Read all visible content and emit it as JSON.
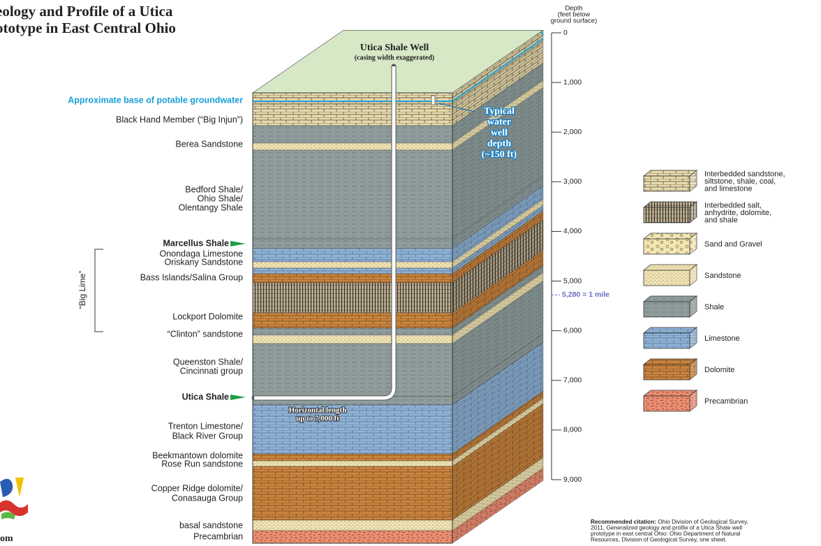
{
  "title": [
    "eology and Profile of a Utica",
    "ototype in East Central Ohio"
  ],
  "well": {
    "title": "Utica Shale Well",
    "note": "(casing width exaggerated)"
  },
  "groundwater_label": "Approximate base of potable groundwater",
  "layer_labels": [
    [
      "Black Hand Member (“Big Injun”)"
    ],
    [
      "Berea Sandstone"
    ],
    [
      "Bedford Shale/",
      "Ohio Shale/",
      "Olentangy Shale"
    ],
    [
      "Marcellus Shale"
    ],
    [
      "Onondaga Limestone",
      "Oriskany Sandstone"
    ],
    [
      "Bass Islands/Salina Group"
    ],
    [
      "Lockport Dolomite"
    ],
    [
      "“Clinton” sandstone"
    ],
    [
      "Queenston Shale/",
      "Cincinnati group"
    ],
    [
      "Utica Shale"
    ],
    [
      "Trenton Limestone/",
      "Black River Group"
    ],
    [
      "Beekmantown dolomite",
      "Rose Run sandstone"
    ],
    [
      "Copper Ridge dolomite/",
      "Conasauga Group"
    ],
    [
      "basal sandstone"
    ],
    [
      "Precambrian"
    ]
  ],
  "big_lime": "“Big Lime”",
  "water_well": [
    "Typical",
    "water",
    "well",
    "depth",
    "(~150 ft)"
  ],
  "horizontal": [
    "Horizontal length",
    "up to 7,000 ft"
  ],
  "depth_axis": {
    "title": [
      "Depth",
      "(feet below",
      "ground surface)"
    ],
    "ticks": [
      0,
      {
        "value": 1000,
        "label": "1,000"
      },
      {
        "value": 2000,
        "label": "2,000"
      },
      {
        "value": 3000,
        "label": "3,000"
      },
      {
        "value": 4000,
        "label": "4,000"
      },
      {
        "value": 5000,
        "label": "5,000"
      },
      {
        "value": 6000,
        "label": "6,000"
      },
      {
        "value": 7000,
        "label": "7,000"
      },
      {
        "value": 8000,
        "label": "8,000"
      },
      {
        "value": 9000,
        "label": "9,000"
      }
    ],
    "mile": {
      "value": 5280,
      "label": "5,280 = 1 mile"
    }
  },
  "legend": [
    [
      "Interbedded sandstone,",
      "siltstone, shale, coal,",
      "and limestone"
    ],
    [
      "Interbedded salt,",
      "anhydrite, dolomite,",
      "and shale"
    ],
    [
      "Sand and Gravel"
    ],
    [
      "Sandstone"
    ],
    [
      "Shale"
    ],
    [
      "Limestone"
    ],
    [
      "Dolomite"
    ],
    [
      "Precambrian"
    ]
  ],
  "citation": {
    "lead": "Recommended citation:",
    "lines": [
      " Ohio Division of Geological Survey,",
      "2011, Generalized geology and profile of a Utica Shale well",
      "prototype in east central Ohio: Ohio Department of Natural",
      "Resources, Division of Geological Survey, one sheet."
    ]
  },
  "logo_text": "om"
}
